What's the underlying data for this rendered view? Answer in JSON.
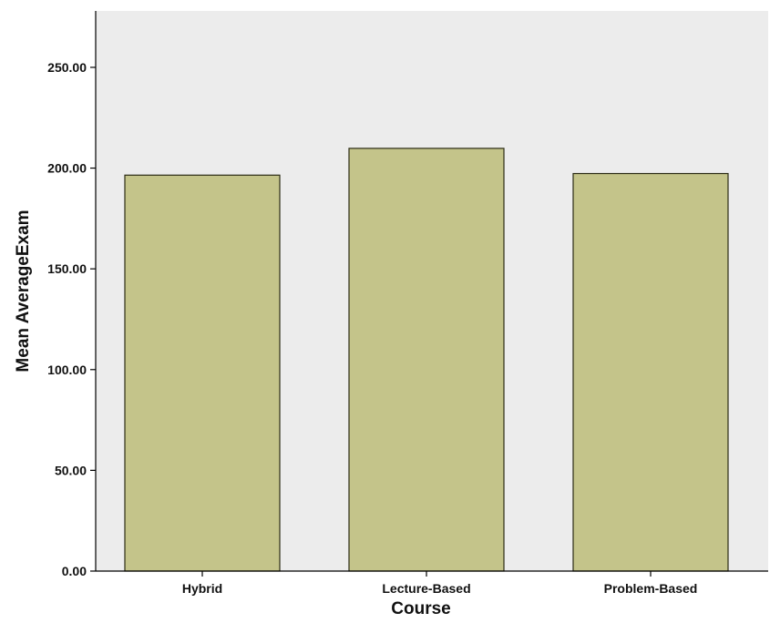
{
  "chart_data": {
    "type": "bar",
    "title": "",
    "xlabel": "Course",
    "ylabel": "Mean AverageExam",
    "categories": [
      "Hybrid",
      "Lecture-Based",
      "Problem-Based"
    ],
    "values": [
      196.5,
      209.8,
      197.3
    ],
    "ylim": [
      0,
      278
    ],
    "yticks": [
      0,
      50,
      100,
      150,
      200,
      250
    ],
    "ytick_labels": [
      "0.00",
      "50.00",
      "100.00",
      "150.00",
      "200.00",
      "250.00"
    ],
    "grid": false,
    "legend": "none",
    "colors": {
      "plot_background": "#ececec",
      "bar_fill": "#c4c48a",
      "bar_stroke": "#2b2b14"
    }
  }
}
